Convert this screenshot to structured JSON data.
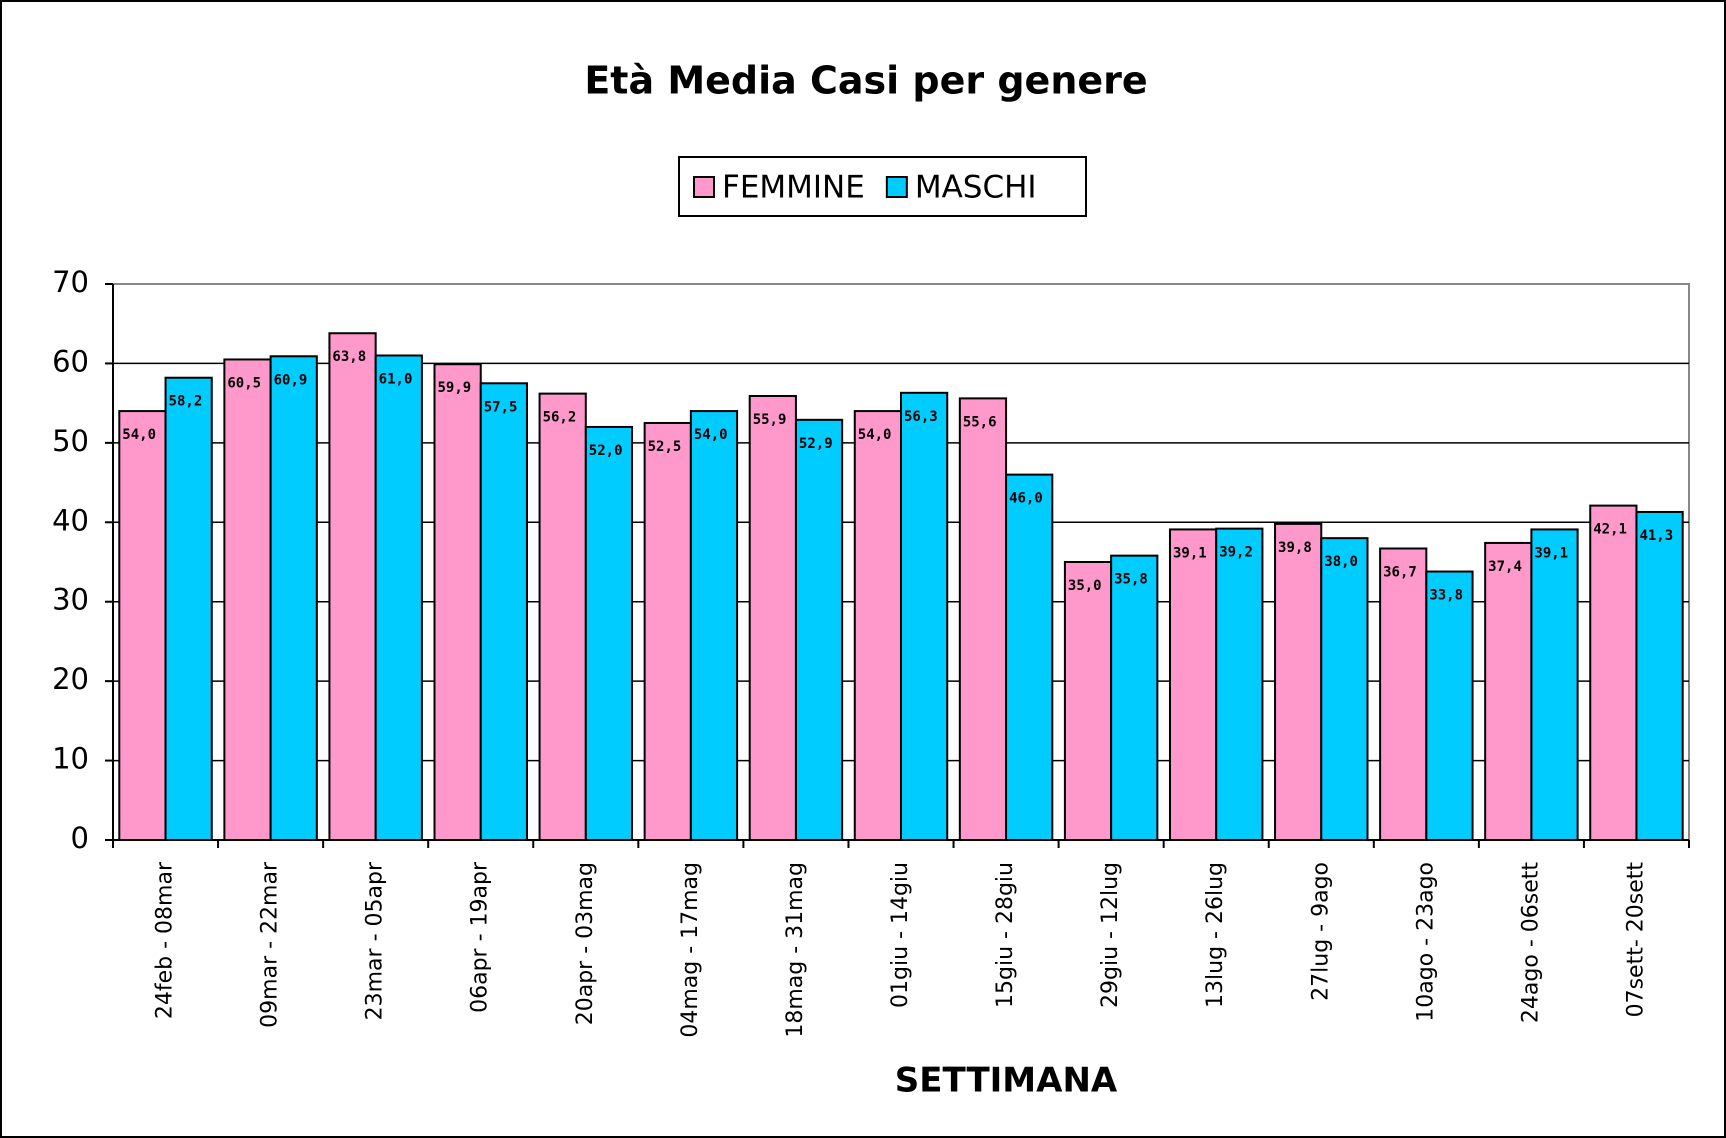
{
  "chart_data": {
    "type": "bar",
    "title": "Età Media Casi per genere",
    "x_label": "SETTIMANA",
    "categories": [
      "24feb - 08mar",
      "09mar - 22mar",
      "23mar - 05apr",
      "06apr - 19apr",
      "20apr - 03mag",
      "04mag - 17mag",
      "18mag - 31mag",
      "01giu - 14giu",
      "15giu - 28giu",
      "29giu - 12lug",
      "13lug - 26lug",
      "27lug - 9ago",
      "10ago - 23ago",
      "24ago - 06sett",
      "07sett- 20sett"
    ],
    "series": [
      {
        "name": "FEMMINE",
        "color": "#ff99cc",
        "values": [
          54.0,
          60.5,
          63.8,
          59.9,
          56.2,
          52.5,
          55.9,
          54.0,
          55.6,
          35.0,
          39.1,
          39.8,
          36.7,
          37.4,
          42.1
        ],
        "value_labels": [
          "54,0",
          "60,5",
          "63,8",
          "59,9",
          "56,2",
          "52,5",
          "55,9",
          "54,0",
          "55,6",
          "35,0",
          "39,1",
          "39,8",
          "36,7",
          "37,4",
          "42,1"
        ]
      },
      {
        "name": "MASCHI",
        "color": "#00ccff",
        "values": [
          58.2,
          60.9,
          61.0,
          57.5,
          52.0,
          54.0,
          52.9,
          56.3,
          46.0,
          35.8,
          39.2,
          38.0,
          33.8,
          39.1,
          41.3
        ],
        "value_labels": [
          "58,2",
          "60,9",
          "61,0",
          "57,5",
          "52,0",
          "54,0",
          "52,9",
          "56,3",
          "46,0",
          "35,8",
          "39,2",
          "38,0",
          "33,8",
          "39,1",
          "41,3"
        ]
      }
    ],
    "ylim": [
      0,
      70
    ],
    "yticks": [
      0,
      10,
      20,
      30,
      40,
      50,
      60,
      70
    ],
    "grid": true,
    "legend": "top"
  }
}
